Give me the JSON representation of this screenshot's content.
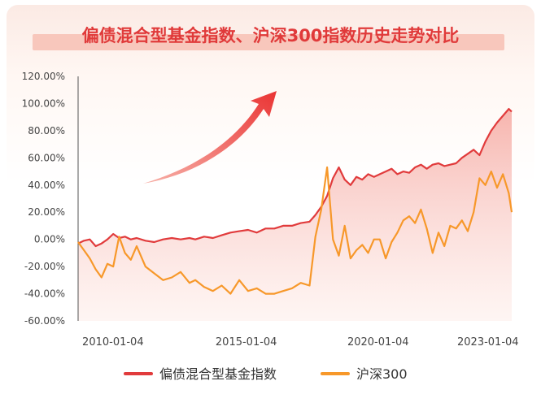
{
  "colors": {
    "fund_index": "#e13b3c",
    "csi300": "#f7982a",
    "arrow": "#ef3f3f",
    "title": "#e03a3a",
    "title_band": "#f8c7bc"
  },
  "chart_data": {
    "type": "line",
    "title": "偏债混合型基金指数、沪深300指数历史走势对比",
    "xlabel": "",
    "ylabel": "",
    "ylim": [
      -60,
      120
    ],
    "xlim": [
      2010.0,
      2024.8
    ],
    "y_ticks": [
      "120.00%",
      "100.00%",
      "80.00%",
      "60.00%",
      "40.00%",
      "20.00%",
      "0.00%",
      "-20.00%",
      "-40.00%",
      "-60.00%"
    ],
    "y_tick_values": [
      120,
      100,
      80,
      60,
      40,
      20,
      0,
      -20,
      -40,
      -60
    ],
    "x_ticks": [
      "2010-01-04",
      "2015-01-04",
      "2020-01-04",
      "2023-01-04"
    ],
    "x_tick_values": [
      2012.55,
      2017.1,
      2021.6,
      2025.35
    ],
    "legend_position": "bottom",
    "grid": false,
    "series": [
      {
        "name": "偏债混合型基金指数",
        "fill": true,
        "x": [
          2010.0,
          2010.2,
          2010.4,
          2010.6,
          2010.8,
          2011.0,
          2011.2,
          2011.4,
          2011.6,
          2011.8,
          2012.0,
          2012.3,
          2012.6,
          2012.9,
          2013.2,
          2013.5,
          2013.8,
          2014.0,
          2014.3,
          2014.6,
          2014.9,
          2015.2,
          2015.5,
          2015.8,
          2016.1,
          2016.4,
          2016.7,
          2017.0,
          2017.3,
          2017.6,
          2017.9,
          2018.1,
          2018.3,
          2018.5,
          2018.7,
          2018.9,
          2019.1,
          2019.3,
          2019.5,
          2019.7,
          2019.9,
          2020.1,
          2020.3,
          2020.5,
          2020.7,
          2020.9,
          2021.1,
          2021.3,
          2021.5,
          2021.7,
          2021.9,
          2022.1,
          2022.3,
          2022.5,
          2022.7,
          2022.9,
          2023.1,
          2023.3,
          2023.5,
          2023.7,
          2023.9,
          2024.1,
          2024.3,
          2024.5,
          2024.7,
          2024.8
        ],
        "values": [
          -3,
          -1,
          0,
          -5,
          -3,
          0,
          4,
          1,
          2,
          0,
          1,
          -1,
          -2,
          0,
          1,
          0,
          1,
          0,
          2,
          1,
          3,
          5,
          6,
          7,
          5,
          8,
          8,
          10,
          10,
          12,
          13,
          18,
          24,
          32,
          45,
          53,
          44,
          40,
          46,
          44,
          48,
          46,
          48,
          50,
          52,
          48,
          50,
          49,
          53,
          55,
          52,
          55,
          56,
          54,
          55,
          56,
          60,
          63,
          66,
          62,
          72,
          80,
          86,
          91,
          96,
          94
        ]
      },
      {
        "name": "沪深300",
        "fill": false,
        "x": [
          2010.0,
          2010.2,
          2010.4,
          2010.6,
          2010.8,
          2011.0,
          2011.2,
          2011.4,
          2011.6,
          2011.8,
          2012.0,
          2012.3,
          2012.6,
          2012.9,
          2013.2,
          2013.5,
          2013.8,
          2014.0,
          2014.3,
          2014.6,
          2014.9,
          2015.2,
          2015.5,
          2015.8,
          2016.1,
          2016.4,
          2016.7,
          2017.0,
          2017.3,
          2017.6,
          2017.9,
          2018.1,
          2018.3,
          2018.5,
          2018.7,
          2018.9,
          2019.1,
          2019.3,
          2019.5,
          2019.7,
          2019.9,
          2020.1,
          2020.3,
          2020.5,
          2020.7,
          2020.9,
          2021.1,
          2021.3,
          2021.5,
          2021.7,
          2021.9,
          2022.1,
          2022.3,
          2022.5,
          2022.7,
          2022.9,
          2023.1,
          2023.3,
          2023.5,
          2023.7,
          2023.9,
          2024.1,
          2024.3,
          2024.5,
          2024.7,
          2024.8
        ],
        "values": [
          -2,
          -8,
          -14,
          -22,
          -28,
          -18,
          -20,
          2,
          -10,
          -15,
          -5,
          -20,
          -25,
          -30,
          -28,
          -24,
          -32,
          -30,
          -35,
          -38,
          -34,
          -40,
          -30,
          -38,
          -36,
          -40,
          -40,
          -38,
          -36,
          -32,
          -34,
          2,
          22,
          53,
          0,
          -12,
          10,
          -14,
          -8,
          -4,
          -10,
          0,
          0,
          -14,
          -2,
          5,
          14,
          17,
          12,
          22,
          8,
          -10,
          5,
          -5,
          10,
          8,
          14,
          6,
          20,
          45,
          40,
          50,
          38,
          48,
          34,
          20
        ]
      }
    ]
  }
}
